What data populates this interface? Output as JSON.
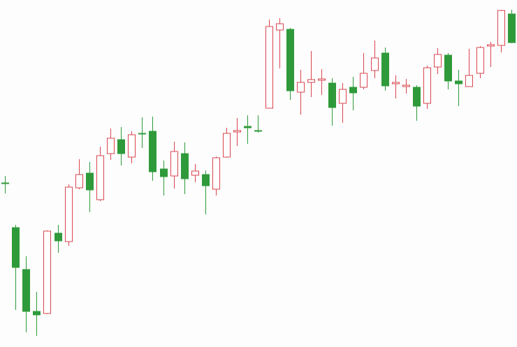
{
  "chart_data": {
    "type": "candlestick",
    "categories": [
      null,
      null,
      null,
      null,
      null,
      null,
      null,
      null,
      null,
      null,
      null,
      null,
      null,
      null,
      null,
      null,
      null,
      null,
      null,
      null,
      null,
      null,
      null,
      null,
      null,
      null,
      null,
      null,
      null,
      null,
      null,
      null,
      null,
      null,
      null,
      null,
      null,
      null,
      null,
      null,
      null,
      null,
      null,
      null,
      null,
      null,
      null,
      null,
      null
    ],
    "open": [
      235,
      171,
      111,
      51,
      48,
      163,
      151,
      228,
      249,
      211,
      277,
      297,
      272,
      306,
      309,
      255,
      245,
      277,
      246,
      247,
      226,
      272,
      308,
      316,
      310,
      342,
      454,
      455,
      365,
      379,
      382,
      378,
      349,
      372,
      372,
      396,
      421,
      377,
      373,
      372,
      349,
      401,
      418,
      381,
      373,
      392,
      431,
      432,
      477
    ],
    "high": [
      245,
      175,
      130,
      79,
      167,
      175,
      233,
      269,
      265,
      287,
      313,
      315,
      309,
      329,
      330,
      267,
      294,
      293,
      262,
      253,
      273,
      314,
      328,
      332,
      332,
      469,
      471,
      457,
      397,
      424,
      398,
      385,
      378,
      387,
      421,
      439,
      429,
      389,
      384,
      375,
      403,
      428,
      421,
      397,
      427,
      431,
      437,
      483,
      483
    ],
    "low": [
      220,
      53,
      21,
      16,
      47,
      135,
      145,
      226,
      193,
      209,
      268,
      260,
      263,
      285,
      238,
      217,
      227,
      219,
      236,
      190,
      217,
      271,
      288,
      291,
      307,
      342,
      399,
      354,
      333,
      358,
      361,
      317,
      321,
      339,
      369,
      385,
      367,
      356,
      363,
      324,
      341,
      391,
      369,
      345,
      373,
      385,
      401,
      422,
      435
    ],
    "close": [
      234,
      114,
      51,
      46,
      166,
      152,
      229,
      247,
      225,
      274,
      299,
      277,
      304,
      305,
      251,
      244,
      280,
      241,
      252,
      231,
      271,
      306,
      310,
      314,
      309,
      459,
      463,
      367,
      379,
      383,
      384,
      343,
      369,
      364,
      392,
      414,
      374,
      379,
      375,
      345,
      400,
      419,
      381,
      377,
      389,
      429,
      433,
      482,
      436
    ],
    "up_color": "#d9454f",
    "down_color": "#2f9a3a",
    "ylim": [
      0,
      497
    ]
  }
}
